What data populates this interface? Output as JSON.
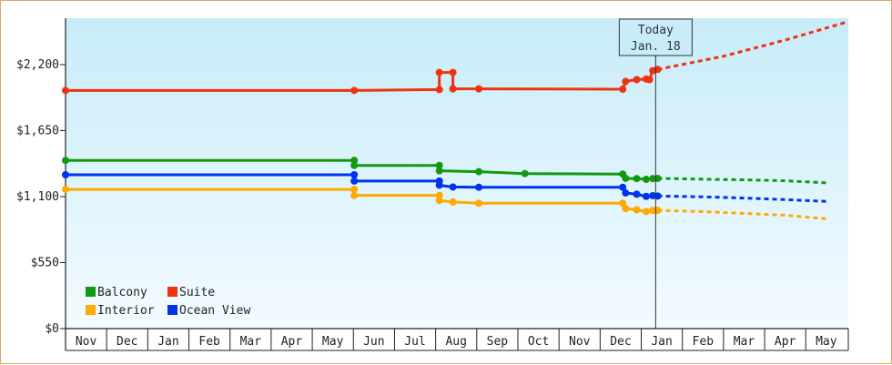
{
  "chart_data": {
    "type": "line",
    "title": "",
    "xlabel": "",
    "ylabel": "",
    "ylim": [
      0,
      2200
    ],
    "y_ticks": [
      {
        "value": 0,
        "label": "$0"
      },
      {
        "value": 550,
        "label": "$550"
      },
      {
        "value": 1100,
        "label": "$1,100"
      },
      {
        "value": 1650,
        "label": "$1,650"
      },
      {
        "value": 2200,
        "label": "$2,200"
      }
    ],
    "x_labels": [
      "Nov",
      "Dec",
      "Jan",
      "Feb",
      "Mar",
      "Apr",
      "May",
      "Jun",
      "Jul",
      "Aug",
      "Sep",
      "Oct",
      "Nov",
      "Dec",
      "Jan",
      "Feb",
      "Mar",
      "Apr",
      "May"
    ],
    "x_unit": "month index (0 = Nov)",
    "x_range": [
      0,
      18.95
    ],
    "today_marker": {
      "line1": "Today",
      "line2": "Jan. 18",
      "x": 14.35
    },
    "grid": false,
    "legend": {
      "placement": "bottom-left"
    },
    "series": [
      {
        "name": "Balcony",
        "color": "#119911",
        "points": [
          [
            0,
            1402
          ],
          [
            7.02,
            1402
          ],
          [
            7.02,
            1360
          ],
          [
            9.09,
            1360
          ],
          [
            9.09,
            1315
          ],
          [
            10.05,
            1308
          ],
          [
            11.17,
            1292
          ],
          [
            13.55,
            1288
          ],
          [
            13.62,
            1252
          ],
          [
            13.89,
            1250
          ],
          [
            14.12,
            1244
          ],
          [
            14.28,
            1250
          ],
          [
            14.4,
            1252
          ]
        ],
        "forecast": [
          [
            14.4,
            1252
          ],
          [
            15.5,
            1245
          ],
          [
            16.5,
            1240
          ],
          [
            17.5,
            1232
          ],
          [
            18.5,
            1215
          ]
        ]
      },
      {
        "name": "Suite",
        "color": "#ee3311",
        "points": [
          [
            0,
            1985
          ],
          [
            7.02,
            1985
          ],
          [
            9.09,
            1992
          ],
          [
            9.09,
            2135
          ],
          [
            9.42,
            2135
          ],
          [
            9.42,
            1998
          ],
          [
            10.05,
            1998
          ],
          [
            13.55,
            1995
          ],
          [
            13.62,
            2060
          ],
          [
            13.89,
            2075
          ],
          [
            14.12,
            2080
          ],
          [
            14.2,
            2075
          ],
          [
            14.28,
            2150
          ],
          [
            14.4,
            2160
          ]
        ],
        "forecast": [
          [
            14.4,
            2160
          ],
          [
            16.0,
            2270
          ],
          [
            17.5,
            2405
          ],
          [
            18.95,
            2550
          ]
        ]
      },
      {
        "name": "Interior",
        "color": "#ffaa00",
        "points": [
          [
            0,
            1160
          ],
          [
            7.02,
            1160
          ],
          [
            7.02,
            1110
          ],
          [
            9.09,
            1110
          ],
          [
            9.09,
            1068
          ],
          [
            9.42,
            1055
          ],
          [
            10.05,
            1045
          ],
          [
            13.55,
            1045
          ],
          [
            13.62,
            1000
          ],
          [
            13.89,
            990
          ],
          [
            14.12,
            975
          ],
          [
            14.28,
            985
          ],
          [
            14.4,
            985
          ]
        ],
        "forecast": [
          [
            14.4,
            985
          ],
          [
            15.5,
            975
          ],
          [
            16.5,
            960
          ],
          [
            17.5,
            945
          ],
          [
            18.5,
            915
          ]
        ]
      },
      {
        "name": "Ocean View",
        "color": "#0033ee",
        "points": [
          [
            0,
            1282
          ],
          [
            7.02,
            1282
          ],
          [
            7.02,
            1230
          ],
          [
            9.09,
            1230
          ],
          [
            9.09,
            1195
          ],
          [
            9.42,
            1180
          ],
          [
            10.05,
            1178
          ],
          [
            13.55,
            1178
          ],
          [
            13.62,
            1130
          ],
          [
            13.89,
            1120
          ],
          [
            14.12,
            1102
          ],
          [
            14.28,
            1108
          ],
          [
            14.4,
            1105
          ]
        ],
        "forecast": [
          [
            14.4,
            1105
          ],
          [
            15.5,
            1098
          ],
          [
            16.5,
            1088
          ],
          [
            17.5,
            1075
          ],
          [
            18.5,
            1060
          ]
        ]
      }
    ]
  }
}
